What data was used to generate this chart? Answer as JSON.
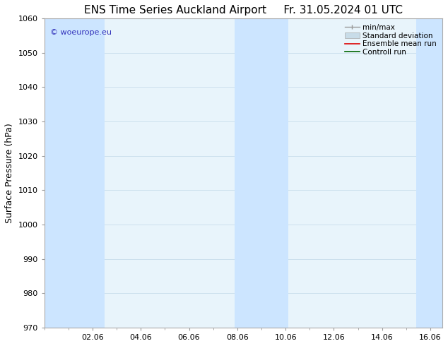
{
  "title_left": "ENS Time Series Auckland Airport",
  "title_right": "Fr. 31.05.2024 01 UTC",
  "ylabel": "Surface Pressure (hPa)",
  "ylim": [
    970,
    1060
  ],
  "yticks": [
    970,
    980,
    990,
    1000,
    1010,
    1020,
    1030,
    1040,
    1050,
    1060
  ],
  "xtick_labels": [
    "02.06",
    "04.06",
    "06.06",
    "08.06",
    "10.06",
    "12.06",
    "14.06",
    "16.06"
  ],
  "xtick_positions": [
    2,
    4,
    6,
    8,
    10,
    12,
    14,
    16
  ],
  "xlim": [
    0.0,
    16.5
  ],
  "bg_color": "#ffffff",
  "plot_bg_color": "#e8f4fb",
  "shaded_bands": [
    {
      "x_start": 0.0,
      "x_end": 2.5,
      "color": "#cce5ff"
    },
    {
      "x_start": 7.9,
      "x_end": 10.1,
      "color": "#cce5ff"
    },
    {
      "x_start": 15.4,
      "x_end": 16.5,
      "color": "#cce5ff"
    }
  ],
  "watermark_text": "© woeurope.eu",
  "watermark_color": "#3333bb",
  "title_fontsize": 11,
  "axis_label_fontsize": 9,
  "tick_fontsize": 8,
  "legend_fontsize": 7.5
}
